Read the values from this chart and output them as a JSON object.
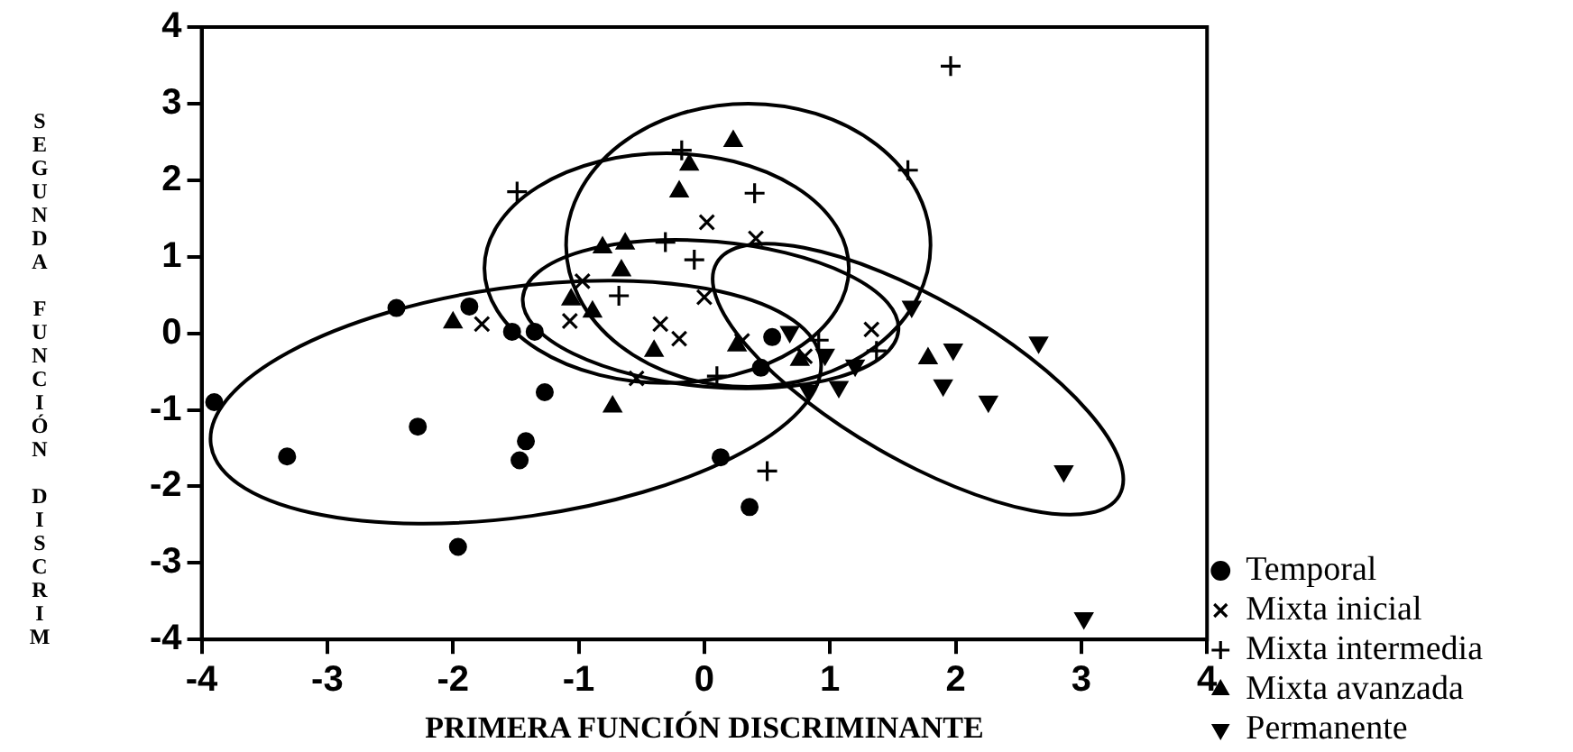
{
  "chart_data": {
    "type": "scatter",
    "xlabel": "PRIMERA FUNCIÓN DISCRIMINANTE",
    "ylabel": "SEGUNDA FUNCIÓN DISCRIM",
    "xlim": [
      -4,
      4
    ],
    "xticks": [
      -4,
      -3,
      -2,
      -1,
      0,
      1,
      2,
      3,
      4
    ],
    "ylim": [
      -4,
      4
    ],
    "yticks": [
      -4,
      -3,
      -2,
      -1,
      0,
      1,
      2,
      3,
      4
    ],
    "grid": false,
    "legend": "bottom right",
    "series": [
      {
        "name": "Temporal",
        "color": "#000000",
        "marker": "circle",
        "x": [
          -3.9,
          -3.32,
          -2.45,
          -2.28,
          -1.96,
          -1.87,
          -1.53,
          -1.35,
          -1.27,
          -1.42,
          -1.47,
          0.54,
          0.45,
          0.13,
          0.36
        ],
        "values": [
          -0.9,
          -1.61,
          0.33,
          -1.22,
          -2.79,
          0.35,
          0.02,
          0.02,
          -0.77,
          -1.41,
          -1.66,
          -0.05,
          -0.45,
          -1.62,
          -2.27
        ]
      },
      {
        "name": "Mixta inicial",
        "color": "#000000",
        "marker": "x",
        "x": [
          -1.77,
          -1.07,
          -0.97,
          -0.54,
          -0.35,
          -0.2,
          0.02,
          0.0,
          0.41,
          1.33,
          0.3,
          0.8
        ],
        "values": [
          0.12,
          0.16,
          0.68,
          -0.59,
          0.12,
          -0.07,
          1.45,
          0.47,
          1.24,
          0.05,
          -0.1,
          -0.3
        ]
      },
      {
        "name": "Mixta intermedia",
        "color": "#000000",
        "marker": "cross",
        "x": [
          -0.18,
          -1.49,
          -0.08,
          -0.31,
          -0.68,
          1.96,
          1.62,
          0.4,
          0.1,
          0.91,
          1.37,
          0.5
        ],
        "values": [
          2.39,
          1.85,
          0.96,
          1.19,
          0.49,
          3.49,
          2.13,
          1.83,
          -0.56,
          -0.09,
          -0.23,
          -1.8
        ]
      },
      {
        "name": "Mixta avanzada",
        "color": "#000000",
        "marker": "triangle",
        "x": [
          -0.12,
          -0.2,
          -0.81,
          -0.63,
          -0.66,
          -1.06,
          -0.89,
          -2.0,
          -0.4,
          -0.73,
          0.23,
          0.26,
          0.76,
          1.78
        ],
        "values": [
          2.2,
          1.85,
          1.12,
          1.17,
          0.82,
          0.44,
          0.28,
          0.14,
          -0.23,
          -0.96,
          2.51,
          -0.16,
          -0.35,
          -0.33
        ]
      },
      {
        "name": "Permanente",
        "color": "#000000",
        "marker": "triangle-down",
        "x": [
          1.65,
          0.68,
          1.98,
          2.66,
          1.9,
          2.26,
          2.86,
          3.02,
          1.2,
          1.07,
          0.83,
          0.96
        ],
        "values": [
          0.35,
          0.02,
          -0.21,
          -0.12,
          -0.68,
          -0.89,
          -1.8,
          -3.72,
          -0.42,
          -0.7,
          -0.75,
          -0.28
        ]
      }
    ]
  }
}
